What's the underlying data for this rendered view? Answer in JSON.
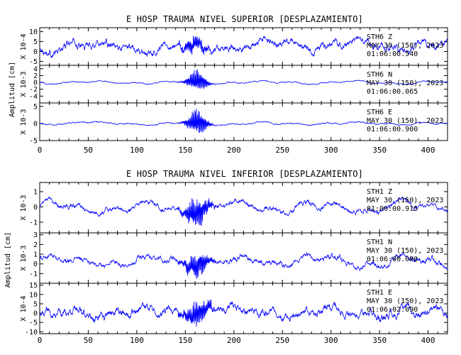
{
  "chart_data": [
    {
      "type": "line",
      "title": "E HOSP TRAUMA NIVEL SUPERIOR [DESPLAZAMIENTO]",
      "ylabel": "Amplitud [cm]",
      "xlim": [
        0,
        420
      ],
      "x_ticks": [
        0,
        50,
        100,
        150,
        200,
        250,
        300,
        350,
        400
      ],
      "traces": [
        {
          "ylim": [
            -7,
            12
          ],
          "y_ticks": [
            -5,
            0,
            5,
            10
          ],
          "scale_label": "X 10-4",
          "ann": [
            "STH6   Z",
            "MAY 30 (150), 2023",
            "01:06:00.540"
          ],
          "base": 2.5,
          "noise": 3.0,
          "peak_amp": 3.5,
          "peak_x": 160,
          "peak_w": 12,
          "wave_amp": 3.0
        },
        {
          "ylim": [
            -6,
            5
          ],
          "y_ticks": [
            -4,
            -2,
            0,
            2,
            4
          ],
          "scale_label": "X 10-3",
          "ann": [
            "STH6   N",
            "MAY 30 (150), 2023",
            "01:06:00.065"
          ],
          "base": 0,
          "noise": 0.25,
          "peak_amp": 3.0,
          "peak_x": 162,
          "peak_w": 10,
          "wave_amp": 0.5
        },
        {
          "ylim": [
            -5,
            6
          ],
          "y_ticks": [
            -5,
            0,
            5
          ],
          "scale_label": "X 10-3",
          "ann": [
            "STH6   E",
            "MAY 30 (150), 2023",
            "01:06:00.900"
          ],
          "base": 0,
          "noise": 0.3,
          "peak_amp": 3.5,
          "peak_x": 162,
          "peak_w": 10,
          "wave_amp": 0.5
        }
      ]
    },
    {
      "type": "line",
      "title": "E HOSP TRAUMA NIVEL INFERIOR [DESPLAZAMIENTO]",
      "ylabel": "Amplitud [cm]",
      "xlim": [
        0,
        420
      ],
      "x_ticks": [
        0,
        50,
        100,
        150,
        200,
        250,
        300,
        350,
        400
      ],
      "traces": [
        {
          "ylim": [
            -1.7,
            1.6
          ],
          "y_ticks": [
            -1,
            0,
            1
          ],
          "scale_label": "X 10-3",
          "ann": [
            "STH1   Z",
            "MAY 30 (150), 2023",
            "01:06:00.915"
          ],
          "base": 0,
          "noise": 0.25,
          "peak_amp": 0.9,
          "peak_x": 162,
          "peak_w": 12,
          "wave_amp": 0.45
        },
        {
          "ylim": [
            -2,
            3.2
          ],
          "y_ticks": [
            -1,
            0,
            1,
            2,
            3
          ],
          "scale_label": "X 10-3",
          "ann": [
            "STH1   N",
            "MAY 30 (150), 2023",
            "01:06:00.080"
          ],
          "base": 0.3,
          "noise": 0.45,
          "peak_amp": 1.2,
          "peak_x": 162,
          "peak_w": 12,
          "wave_amp": 0.6
        },
        {
          "ylim": [
            -11,
            16
          ],
          "y_ticks": [
            -10,
            -5,
            0,
            5,
            10,
            15
          ],
          "scale_label": "X 10-4",
          "ann": [
            "STH1   E",
            "MAY 30 (150), 2023",
            "01:06:02.090"
          ],
          "base": 0,
          "noise": 3.5,
          "peak_amp": 6,
          "peak_x": 162,
          "peak_w": 14,
          "wave_amp": 2.5
        }
      ]
    }
  ],
  "colors": {
    "trace": "#0000ff",
    "axis": "#000000",
    "background": "#ffffff"
  }
}
